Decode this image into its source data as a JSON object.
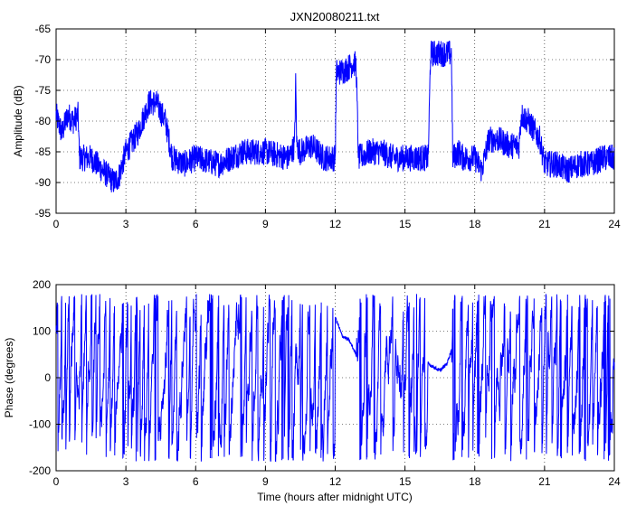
{
  "figure": {
    "title": "JXN20080211.txt"
  },
  "chart_data": [
    {
      "type": "line",
      "title": "JXN20080211.txt",
      "xlabel": "",
      "ylabel": "Amplitude (dB)",
      "xlim": [
        0,
        24
      ],
      "ylim": [
        -95,
        -65
      ],
      "xticks": [
        0,
        3,
        6,
        9,
        12,
        15,
        18,
        21,
        24
      ],
      "yticks": [
        -95,
        -90,
        -85,
        -80,
        -75,
        -70,
        -65
      ],
      "grid": true,
      "color": "#0000ff",
      "series": [
        {
          "x": [
            0,
            0.25,
            0.5,
            0.75,
            0.95,
            1.0,
            1.5,
            2.0,
            2.5,
            2.7,
            3.0,
            3.5,
            4.0,
            4.3,
            4.7,
            5.0,
            5.5,
            6.0,
            7.0,
            8.0,
            9.0,
            10.0,
            10.25,
            10.3,
            10.35,
            10.5,
            11.0,
            11.5,
            11.8,
            12.0,
            12.05,
            12.2,
            12.5,
            12.8,
            12.9,
            13.0,
            13.5,
            14.0,
            14.5,
            15.0,
            15.5,
            16.0,
            16.1,
            16.5,
            17.0,
            17.05,
            17.3,
            17.5,
            18.0,
            18.3,
            18.6,
            19.0,
            19.5,
            19.9,
            20.0,
            20.3,
            20.8,
            21.0,
            21.5,
            22.0,
            22.5,
            23.0,
            23.5,
            24.0
          ],
          "y": [
            -79,
            -82,
            -79,
            -80,
            -79,
            -86,
            -86,
            -88,
            -90,
            -89,
            -85,
            -82,
            -77,
            -77,
            -80,
            -86,
            -87,
            -86,
            -87,
            -85,
            -85,
            -86,
            -84,
            -74,
            -84,
            -85,
            -84,
            -86,
            -86,
            -86,
            -72,
            -72,
            -71.5,
            -70.5,
            -71,
            -86,
            -85,
            -85,
            -86,
            -86,
            -86,
            -86,
            -69,
            -69,
            -69,
            -86,
            -85,
            -86,
            -86,
            -88,
            -83,
            -83,
            -84,
            -84,
            -79,
            -80,
            -83,
            -87,
            -87,
            -88,
            -87,
            -87,
            -86,
            -86
          ]
        }
      ]
    },
    {
      "type": "line",
      "title": "",
      "xlabel": "Time (hours after midnight UTC)",
      "ylabel": "Phase (degrees)",
      "xlim": [
        0,
        24
      ],
      "ylim": [
        -200,
        200
      ],
      "xticks": [
        0,
        3,
        6,
        9,
        12,
        15,
        18,
        21,
        24
      ],
      "yticks": [
        -200,
        -100,
        0,
        100,
        200
      ],
      "grid": true,
      "color": "#0000ff",
      "series": [
        {
          "x": [
            0,
            0.3,
            0.35,
            0.8,
            0.9,
            1.5,
            2,
            3,
            4,
            5,
            6,
            7,
            8,
            9,
            10,
            11,
            11.9,
            12,
            12.3,
            12.6,
            12.8,
            13,
            14,
            14.5,
            15,
            15.5,
            16,
            16.5,
            16.8,
            17,
            17.2,
            18,
            19,
            20,
            20.3,
            20.6,
            21,
            22,
            23,
            24
          ],
          "y": [
            90,
            100,
            -170,
            -175,
            60,
            0,
            20,
            -20,
            10,
            30,
            -40,
            0,
            20,
            -10,
            10,
            -20,
            0,
            130,
            90,
            80,
            60,
            40,
            10,
            30,
            60,
            40,
            30,
            15,
            30,
            60,
            0,
            -20,
            20,
            -10,
            -100,
            -50,
            30,
            -10,
            20,
            0
          ]
        }
      ]
    }
  ]
}
